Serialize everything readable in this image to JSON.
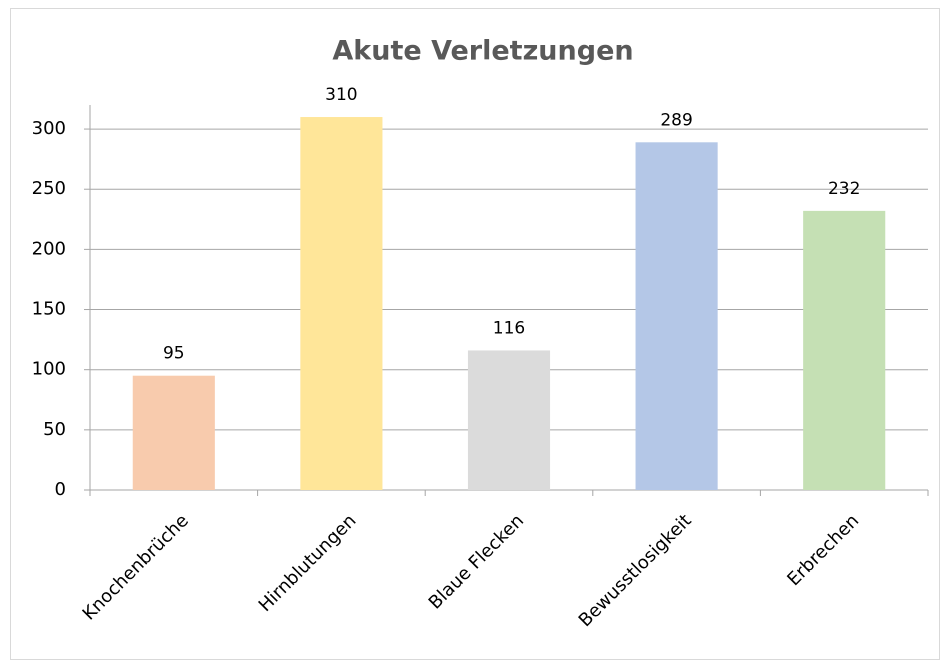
{
  "chart_data": {
    "type": "bar",
    "title": "Akute Verletzungen",
    "categories": [
      "Knochenbrüche",
      "Hirnblutungen",
      "Blaue Flecken",
      "Bewusstlosigkeit",
      "Erbrechen"
    ],
    "values": [
      95,
      310,
      116,
      289,
      232
    ],
    "colors": [
      "#f8cbad",
      "#ffe699",
      "#dbdbdb",
      "#b4c7e7",
      "#c5e0b4"
    ],
    "ylim": [
      0,
      320
    ],
    "yticks": [
      0,
      50,
      100,
      150,
      200,
      250,
      300
    ],
    "grid": true
  }
}
